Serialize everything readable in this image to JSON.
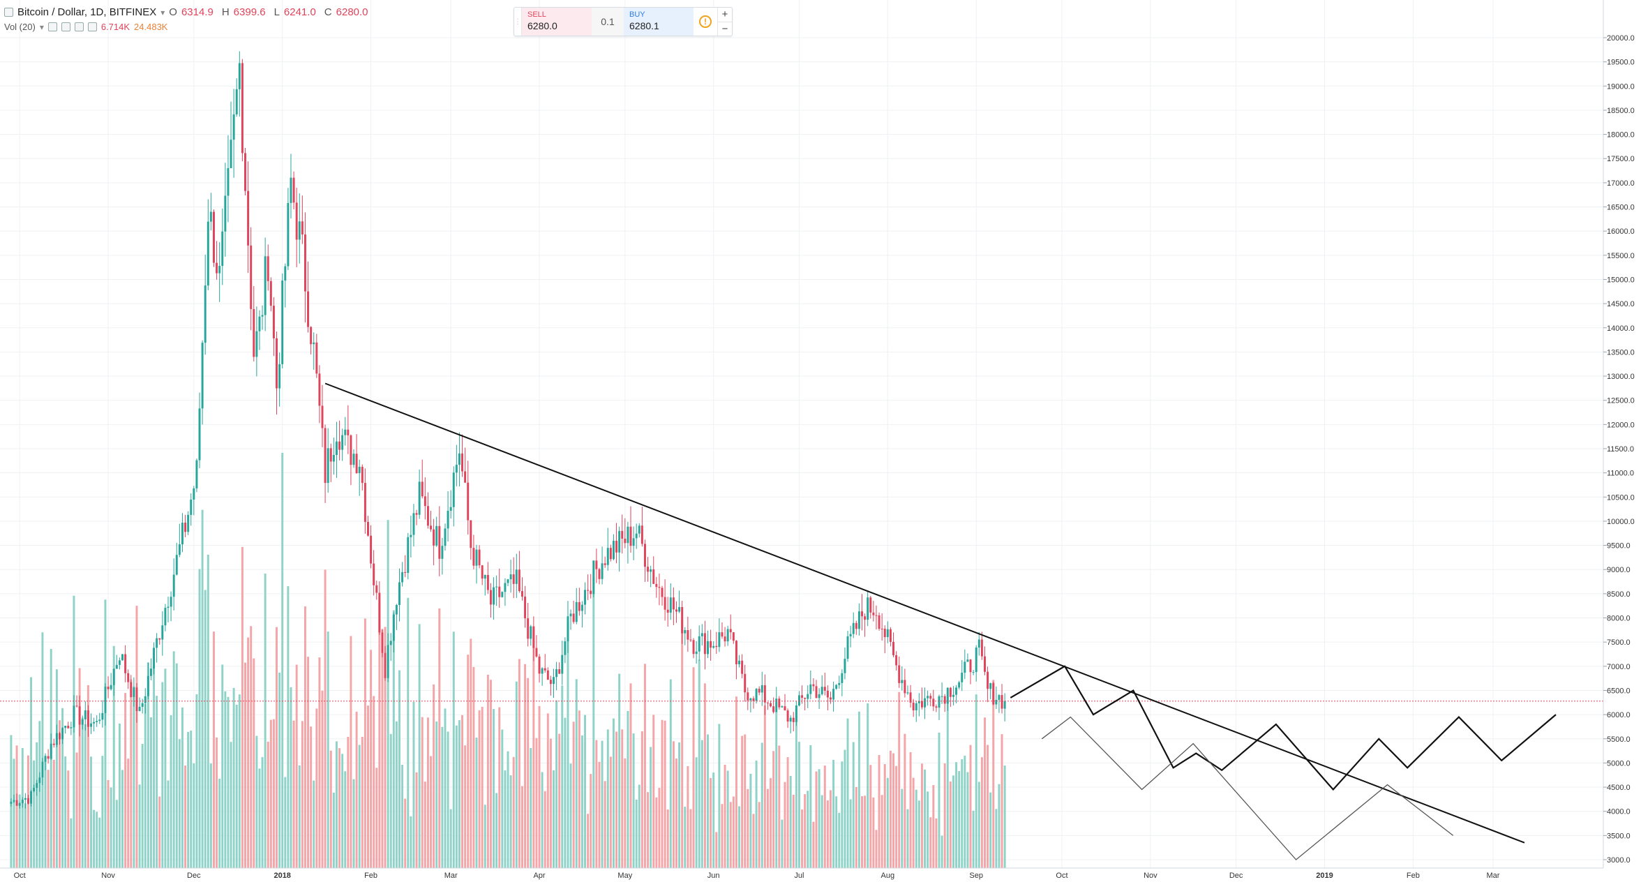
{
  "header": {
    "symbol": "Bitcoin / Dollar, 1D, BITFINEX",
    "o_label": "O",
    "o_value": "6314.9",
    "h_label": "H",
    "h_value": "6399.6",
    "l_label": "L",
    "l_value": "6241.0",
    "c_label": "C",
    "c_value": "6280.0"
  },
  "volume_legend": {
    "label": "Vol (20)",
    "value1": "6.714K",
    "value2": "24.483K"
  },
  "trade_panel": {
    "sell_label": "SELL",
    "sell_price": "6280.0",
    "quantity": "0.1",
    "buy_label": "BUY",
    "buy_price": "6280.1",
    "plus": "+",
    "minus": "−"
  },
  "colors": {
    "up": "#26a69a",
    "down": "#e0435a",
    "up_volume": "#8fd3c8",
    "down_volume": "#f4a5a8",
    "price_tag": "#e0435a",
    "grid": "#eef1f4"
  },
  "chart_data": {
    "type": "candlestick",
    "symbol": "Bitcoin / Dollar",
    "interval": "1D",
    "exchange": "BITFINEX",
    "last_price": "6280.0",
    "ylim": [
      3000,
      20500
    ],
    "y_ticks": [
      "3000.0",
      "3500.0",
      "4000.0",
      "4500.0",
      "5000.0",
      "5500.0",
      "6000.0",
      "6500.0",
      "7000.0",
      "7500.0",
      "8000.0",
      "8500.0",
      "9000.0",
      "9500.0",
      "10000.0",
      "10500.0",
      "11000.0",
      "11500.0",
      "12000.0",
      "12500.0",
      "13000.0",
      "13500.0",
      "14000.0",
      "14500.0",
      "15000.0",
      "15500.0",
      "16000.0",
      "16500.0",
      "17000.0",
      "17500.0",
      "18000.0",
      "18500.0",
      "19000.0",
      "19500.0",
      "20000.0"
    ],
    "x_ticks": [
      "Oct",
      "Nov",
      "Dec",
      "2018",
      "Feb",
      "Mar",
      "Apr",
      "May",
      "Jun",
      "Jul",
      "Aug",
      "Sep",
      "Oct",
      "Nov",
      "Dec",
      "2019",
      "Feb",
      "Mar"
    ],
    "price_path": [
      [
        "2017-09-28",
        4200
      ],
      [
        "2017-10-05",
        4300
      ],
      [
        "2017-10-12",
        5400
      ],
      [
        "2017-10-20",
        6000
      ],
      [
        "2017-10-28",
        5800
      ],
      [
        "2017-11-05",
        7300
      ],
      [
        "2017-11-12",
        6000
      ],
      [
        "2017-11-20",
        8000
      ],
      [
        "2017-11-28",
        9900
      ],
      [
        "2017-12-02",
        11000
      ],
      [
        "2017-12-06",
        16500
      ],
      [
        "2017-12-10",
        15000
      ],
      [
        "2017-12-13",
        16800
      ],
      [
        "2017-12-17",
        19400
      ],
      [
        "2017-12-22",
        13500
      ],
      [
        "2017-12-24",
        14000
      ],
      [
        "2017-12-27",
        15500
      ],
      [
        "2017-12-30",
        12800
      ],
      [
        "2018-01-04",
        17000
      ],
      [
        "2018-01-08",
        15500
      ],
      [
        "2018-01-12",
        13500
      ],
      [
        "2018-01-16",
        11000
      ],
      [
        "2018-01-20",
        12000
      ],
      [
        "2018-01-24",
        11500
      ],
      [
        "2018-01-28",
        11300
      ],
      [
        "2018-02-02",
        8800
      ],
      [
        "2018-02-06",
        7000
      ],
      [
        "2018-02-10",
        8500
      ],
      [
        "2018-02-18",
        10500
      ],
      [
        "2018-02-25",
        9500
      ],
      [
        "2018-03-04",
        11500
      ],
      [
        "2018-03-08",
        9500
      ],
      [
        "2018-03-15",
        8300
      ],
      [
        "2018-03-20",
        8600
      ],
      [
        "2018-03-24",
        8700
      ],
      [
        "2018-04-01",
        6900
      ],
      [
        "2018-04-06",
        6600
      ],
      [
        "2018-04-12",
        8000
      ],
      [
        "2018-04-20",
        8900
      ],
      [
        "2018-04-24",
        9300
      ],
      [
        "2018-05-05",
        9800
      ],
      [
        "2018-05-12",
        8700
      ],
      [
        "2018-05-18",
        8200
      ],
      [
        "2018-05-25",
        7500
      ],
      [
        "2018-06-01",
        7500
      ],
      [
        "2018-06-06",
        7700
      ],
      [
        "2018-06-12",
        6500
      ],
      [
        "2018-06-18",
        6400
      ],
      [
        "2018-06-24",
        6100
      ],
      [
        "2018-06-28",
        5900
      ],
      [
        "2018-07-05",
        6600
      ],
      [
        "2018-07-12",
        6300
      ],
      [
        "2018-07-18",
        7400
      ],
      [
        "2018-07-24",
        8200
      ],
      [
        "2018-07-28",
        8200
      ],
      [
        "2018-08-04",
        7000
      ],
      [
        "2018-08-10",
        6200
      ],
      [
        "2018-08-14",
        6300
      ],
      [
        "2018-08-20",
        6400
      ],
      [
        "2018-08-26",
        6700
      ],
      [
        "2018-09-02",
        7300
      ],
      [
        "2018-09-05",
        6500
      ],
      [
        "2018-09-11",
        6280
      ]
    ],
    "candle_noise_seed": 7,
    "volume_ylim": [
      0,
      130000
    ],
    "volume_notes": {
      "last_value": "6.714K",
      "ma20": "24.483K"
    },
    "drawings": [
      {
        "name": "descending-trendline",
        "color": "#111111",
        "width": 2,
        "points": [
          [
            "2018-01-16",
            12850
          ],
          [
            "2019-03-12",
            3350
          ]
        ]
      },
      {
        "name": "projection-path-primary",
        "color": "#111111",
        "width": 2.2,
        "points": [
          [
            "2018-09-13",
            6350
          ],
          [
            "2018-10-02",
            7000
          ],
          [
            "2018-10-12",
            6000
          ],
          [
            "2018-10-26",
            6500
          ],
          [
            "2018-11-09",
            4900
          ],
          [
            "2018-11-17",
            5200
          ],
          [
            "2018-11-26",
            4850
          ],
          [
            "2018-12-15",
            5800
          ],
          [
            "2019-01-04",
            4450
          ],
          [
            "2019-01-20",
            5500
          ],
          [
            "2019-01-30",
            4900
          ],
          [
            "2019-02-17",
            5950
          ],
          [
            "2019-03-04",
            5050
          ],
          [
            "2019-03-23",
            6000
          ]
        ]
      },
      {
        "name": "projection-path-secondary",
        "color": "#555555",
        "width": 1.3,
        "points": [
          [
            "2018-09-24",
            5500
          ],
          [
            "2018-10-04",
            5950
          ],
          [
            "2018-10-29",
            4450
          ],
          [
            "2018-11-16",
            5400
          ],
          [
            "2018-12-22",
            3000
          ],
          [
            "2019-01-23",
            4550
          ],
          [
            "2019-02-15",
            3500
          ]
        ]
      }
    ]
  }
}
